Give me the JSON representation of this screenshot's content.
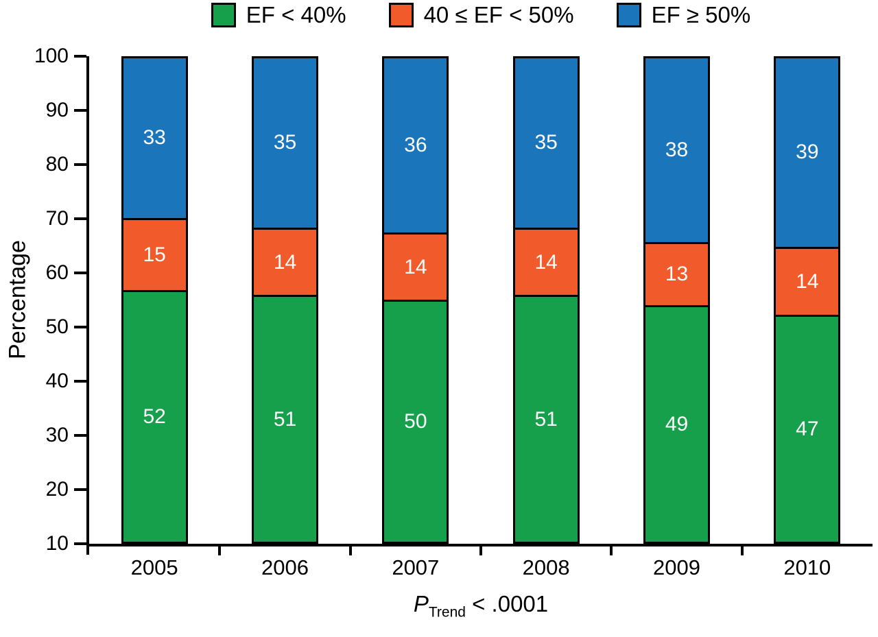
{
  "chart_data": {
    "type": "bar",
    "stacked": true,
    "title": "",
    "xlabel": "",
    "ylabel": "Percentage",
    "ylim": [
      10,
      100
    ],
    "yticks": [
      10,
      20,
      30,
      40,
      50,
      60,
      70,
      80,
      90,
      100
    ],
    "categories": [
      "2005",
      "2006",
      "2007",
      "2008",
      "2009",
      "2010"
    ],
    "series": [
      {
        "name": "EF < 40%",
        "color": "#16a04c",
        "values": [
          52,
          51,
          50,
          51,
          49,
          47
        ]
      },
      {
        "name": "40 ≤ EF < 50%",
        "color": "#f15b2b",
        "values": [
          15,
          14,
          14,
          14,
          13,
          14
        ]
      },
      {
        "name": "EF ≥ 50%",
        "color": "#1b75bb",
        "values": [
          33,
          35,
          36,
          35,
          38,
          39
        ]
      }
    ],
    "legend_position": "top",
    "grid": false,
    "caption": {
      "p": "P",
      "sub": "Trend",
      "rest": " < .0001"
    }
  }
}
